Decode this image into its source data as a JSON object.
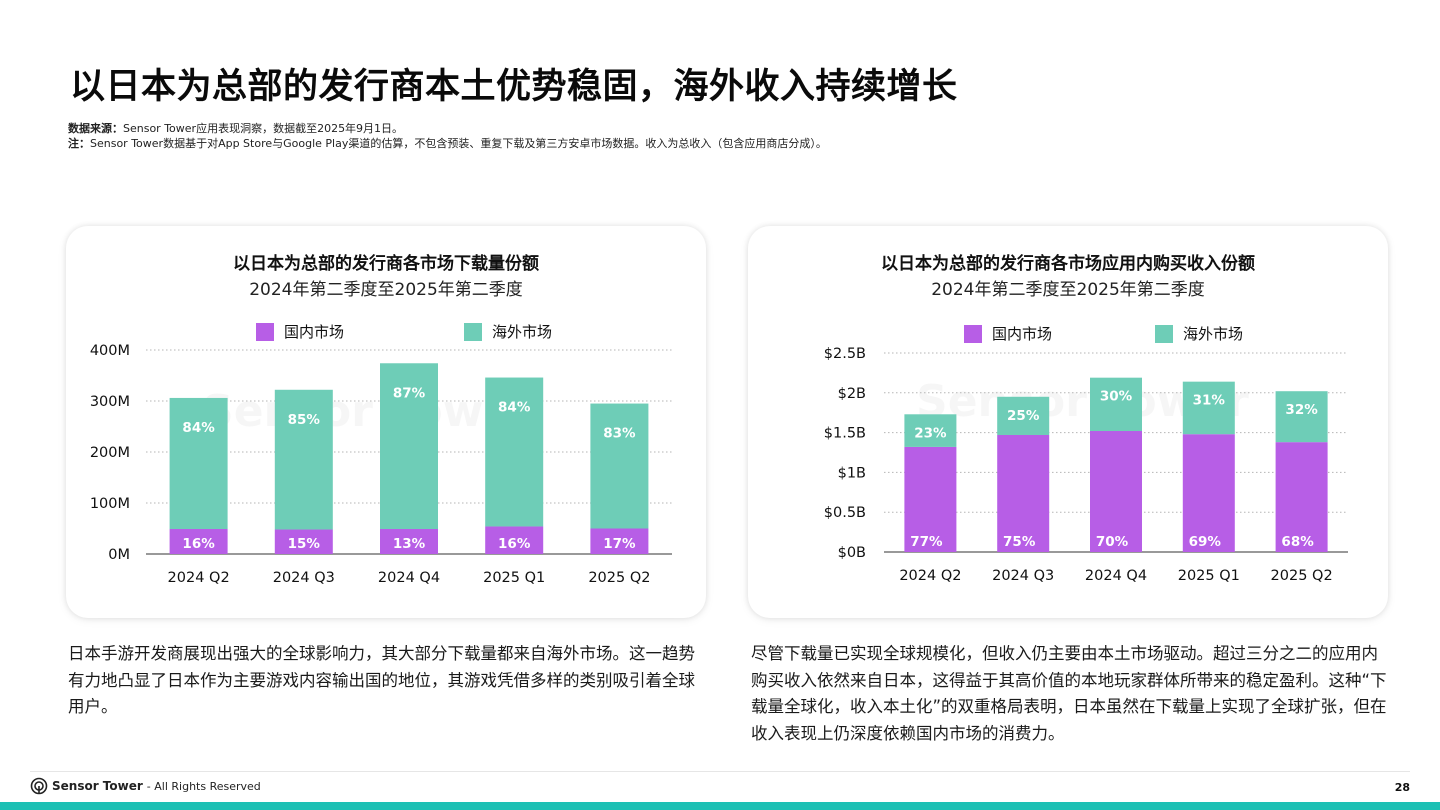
{
  "page": {
    "title": "以日本为总部的发行商本土优势稳固，海外收入持续增长",
    "source_label": "数据来源：",
    "source_text": "Sensor Tower应用表现洞察，数据截至2025年9月1日。",
    "note_label": "注：",
    "note_text": "Sensor Tower数据基于对App Store与Google Play渠道的估算，不包含预装、重复下载及第三方安卓市场数据。收入为总收入（包含应用商店分成）。"
  },
  "colors": {
    "domestic": "#b75ee6",
    "overseas": "#6ecdb7",
    "accent": "#1cc0b4"
  },
  "chart_data": [
    {
      "type": "bar",
      "stacked": true,
      "title": "以日本为总部的发行商各市场下载量份额",
      "subtitle": "2024年第二季度至2025年第二季度",
      "categories": [
        "2024 Q2",
        "2024 Q3",
        "2024 Q4",
        "2025 Q1",
        "2025 Q2"
      ],
      "series": [
        {
          "name": "国内市场",
          "values": [
            49,
            48,
            49,
            54,
            50
          ],
          "labels": [
            "16%",
            "15%",
            "13%",
            "16%",
            "17%"
          ]
        },
        {
          "name": "海外市场",
          "values": [
            257,
            274,
            325,
            292,
            245
          ],
          "labels": [
            "84%",
            "85%",
            "87%",
            "84%",
            "83%"
          ]
        }
      ],
      "yticks": [
        "0M",
        "100M",
        "200M",
        "300M",
        "400M"
      ],
      "ylim": [
        0,
        400
      ],
      "legend": "top",
      "grid": true
    },
    {
      "type": "bar",
      "stacked": true,
      "title": "以日本为总部的发行商各市场应用内购买收入份额",
      "subtitle": "2024年第二季度至2025年第二季度",
      "categories": [
        "2024 Q2",
        "2024 Q3",
        "2024 Q4",
        "2025 Q1",
        "2025 Q2"
      ],
      "series": [
        {
          "name": "国内市场",
          "values": [
            1.32,
            1.47,
            1.52,
            1.48,
            1.38
          ],
          "labels": [
            "77%",
            "75%",
            "70%",
            "69%",
            "68%"
          ]
        },
        {
          "name": "海外市场",
          "values": [
            0.41,
            0.48,
            0.67,
            0.66,
            0.64
          ],
          "labels": [
            "23%",
            "25%",
            "30%",
            "31%",
            "32%"
          ]
        }
      ],
      "yticks": [
        "$0B",
        "$0.5B",
        "$1B",
        "$1.5B",
        "$2B",
        "$2.5B"
      ],
      "ylim": [
        0,
        2.5
      ],
      "legend": "top",
      "grid": true
    }
  ],
  "text": {
    "left": "日本手游开发商展现出强大的全球影响力，其大部分下载量都来自海外市场。这一趋势有力地凸显了日本作为主要游戏内容输出国的地位，其游戏凭借多样的类别吸引着全球用户。",
    "right": "尽管下载量已实现全球规模化，但收入仍主要由本土市场驱动。超过三分之二的应用内购买收入依然来自日本，这得益于其高价值的本地玩家群体所带来的稳定盈利。这种“下载量全球化，收入本土化”的双重格局表明，日本虽然在下载量上实现了全球扩张，但在收入表现上仍深度依赖国内市场的消费力。"
  },
  "footer": {
    "brand": "Sensor Tower",
    "rights": "- All Rights Reserved",
    "page_number": "28",
    "logo_icon": "sensor-tower-logo-icon"
  }
}
